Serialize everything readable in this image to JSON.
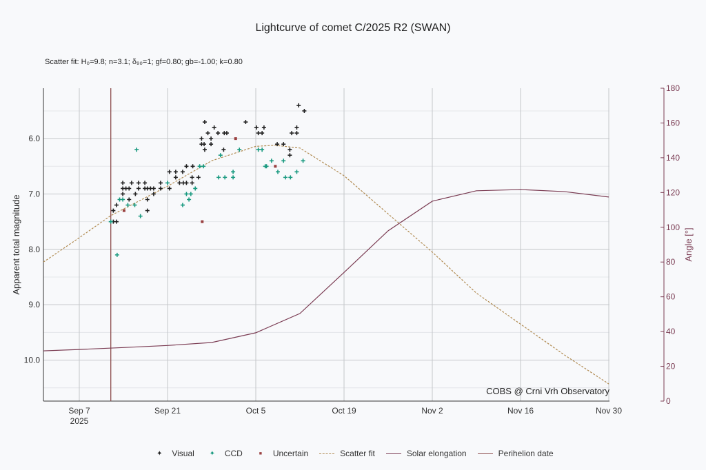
{
  "chart_data": {
    "type": "scatter",
    "title": "Lightcurve of comet C/2025 R2 (SWAN)",
    "subtitle": "Scatter fit: H₀=9.8; n=3.1; δ₉₀=1; gf=0.80; gb=-1.00; k=0.80",
    "xlabel": "",
    "ylabel": "Apparent total magnitude",
    "y2label": "Angle [°]",
    "x_units": "day number counted from Sep 1 2025 = 1 (Oct 1 = 31, Nov 1 = 62)",
    "xlim": [
      1.3,
      91
    ],
    "ylim": [
      10.74,
      5.09
    ],
    "y2lim": [
      0,
      180
    ],
    "x_ticks": [
      {
        "d": 7,
        "label": "Sep 7",
        "sub": "2025"
      },
      {
        "d": 21,
        "label": "Sep 21"
      },
      {
        "d": 35,
        "label": "Oct 5"
      },
      {
        "d": 49,
        "label": "Oct 19"
      },
      {
        "d": 63,
        "label": "Nov 2"
      },
      {
        "d": 77,
        "label": "Nov 16"
      },
      {
        "d": 91,
        "label": "Nov 30"
      }
    ],
    "y_ticks": [
      "6.0",
      "7.0",
      "8.0",
      "9.0",
      "10.0"
    ],
    "y2_ticks": [
      "0",
      "20",
      "40",
      "60",
      "80",
      "100",
      "120",
      "140",
      "160",
      "180"
    ],
    "watermark": "COBS @ Crni Vrh Observatory",
    "perihelion_day": 12,
    "legend": [
      {
        "label": "Visual",
        "glyph": "✦",
        "color": "#222222"
      },
      {
        "label": "CCD",
        "glyph": "✦",
        "color": "#1a9a80"
      },
      {
        "label": "Uncertain",
        "glyph": "■",
        "color": "#9a4040"
      },
      {
        "label": "Scatter fit",
        "style": "dashed",
        "color": "#b08a50"
      },
      {
        "label": "Solar elongation",
        "style": "line",
        "color": "#7a3b52"
      },
      {
        "label": "Perihelion date",
        "style": "line",
        "color": "#8b4a4a"
      }
    ],
    "series": [
      {
        "name": "Visual",
        "color": "#222222",
        "points": [
          [
            26.9,
            5.7
          ],
          [
            41.8,
            5.4
          ],
          [
            42.7,
            5.5
          ],
          [
            33.4,
            5.7
          ],
          [
            28.4,
            5.8
          ],
          [
            35.1,
            5.8
          ],
          [
            36.3,
            5.8
          ],
          [
            41.5,
            5.8
          ],
          [
            27.4,
            5.9
          ],
          [
            29.0,
            5.9
          ],
          [
            30.0,
            5.9
          ],
          [
            30.4,
            5.9
          ],
          [
            35.4,
            5.9
          ],
          [
            36.0,
            5.9
          ],
          [
            40.7,
            5.9
          ],
          [
            41.5,
            5.9
          ],
          [
            26.4,
            6.0
          ],
          [
            27.9,
            6.0
          ],
          [
            26.4,
            6.1
          ],
          [
            26.8,
            6.1
          ],
          [
            27.9,
            6.1
          ],
          [
            38.4,
            6.1
          ],
          [
            39.4,
            6.1
          ],
          [
            26.9,
            6.2
          ],
          [
            29.9,
            6.2
          ],
          [
            40.4,
            6.2
          ],
          [
            40.4,
            6.3
          ],
          [
            24.0,
            6.5
          ],
          [
            25.0,
            6.5
          ],
          [
            21.3,
            6.6
          ],
          [
            22.3,
            6.6
          ],
          [
            23.4,
            6.6
          ],
          [
            22.3,
            6.7
          ],
          [
            24.9,
            6.7
          ],
          [
            25.9,
            6.7
          ],
          [
            13.9,
            6.8
          ],
          [
            15.3,
            6.8
          ],
          [
            16.4,
            6.8
          ],
          [
            17.4,
            6.8
          ],
          [
            19.9,
            6.8
          ],
          [
            22.9,
            6.8
          ],
          [
            23.5,
            6.8
          ],
          [
            24.0,
            6.8
          ],
          [
            24.9,
            6.8
          ],
          [
            13.9,
            6.9
          ],
          [
            14.4,
            6.9
          ],
          [
            14.9,
            6.9
          ],
          [
            16.4,
            6.9
          ],
          [
            17.4,
            6.9
          ],
          [
            17.8,
            6.9
          ],
          [
            18.3,
            6.9
          ],
          [
            18.8,
            6.9
          ],
          [
            19.9,
            6.9
          ],
          [
            21.3,
            6.9
          ],
          [
            13.9,
            7.0
          ],
          [
            15.9,
            7.0
          ],
          [
            18.8,
            7.0
          ],
          [
            14.9,
            7.1
          ],
          [
            17.8,
            7.1
          ],
          [
            12.9,
            7.2
          ],
          [
            12.4,
            7.3
          ],
          [
            17.8,
            7.3
          ],
          [
            12.9,
            7.5
          ],
          [
            12.4,
            7.5
          ]
        ]
      },
      {
        "name": "CCD",
        "color": "#1a9a80",
        "points": [
          [
            16.1,
            6.2
          ],
          [
            29.4,
            6.3
          ],
          [
            32.4,
            6.2
          ],
          [
            35.4,
            6.2
          ],
          [
            36.0,
            6.2
          ],
          [
            26.1,
            6.5
          ],
          [
            26.7,
            6.5
          ],
          [
            31.4,
            6.6
          ],
          [
            29.1,
            6.7
          ],
          [
            30.1,
            6.7
          ],
          [
            31.4,
            6.7
          ],
          [
            21.0,
            6.8
          ],
          [
            25.4,
            6.9
          ],
          [
            24.0,
            7.0
          ],
          [
            24.7,
            7.0
          ],
          [
            24.4,
            7.1
          ],
          [
            23.4,
            7.2
          ],
          [
            13.4,
            7.1
          ],
          [
            13.9,
            7.1
          ],
          [
            14.7,
            7.2
          ],
          [
            15.8,
            7.2
          ],
          [
            16.7,
            7.4
          ],
          [
            12.0,
            7.5
          ],
          [
            13.0,
            8.1
          ],
          [
            36.5,
            6.5
          ],
          [
            36.7,
            6.5
          ],
          [
            37.5,
            6.4
          ],
          [
            39.4,
            6.4
          ],
          [
            42.5,
            6.4
          ],
          [
            38.5,
            6.6
          ],
          [
            39.7,
            6.7
          ],
          [
            40.5,
            6.7
          ],
          [
            41.5,
            6.6
          ]
        ]
      },
      {
        "name": "Uncertain",
        "color": "#9a4040",
        "points": [
          [
            14.1,
            7.3
          ],
          [
            31.8,
            6.0
          ],
          [
            26.5,
            7.5
          ],
          [
            38.1,
            6.5
          ]
        ]
      },
      {
        "name": "Scatter fit",
        "color": "#b08a50",
        "points": [
          [
            1.3,
            8.23
          ],
          [
            7,
            7.79
          ],
          [
            12,
            7.39
          ],
          [
            21,
            6.86
          ],
          [
            28,
            6.4
          ],
          [
            35,
            6.14
          ],
          [
            38,
            6.12
          ],
          [
            42,
            6.17
          ],
          [
            49,
            6.67
          ],
          [
            56,
            7.36
          ],
          [
            63,
            8.05
          ],
          [
            70,
            8.79
          ],
          [
            77,
            9.35
          ],
          [
            84,
            9.91
          ],
          [
            91,
            10.43
          ]
        ]
      },
      {
        "name": "Solar elongation",
        "axis": "right",
        "color": "#7a3b52",
        "points": [
          [
            1.3,
            28.9
          ],
          [
            7,
            29.7
          ],
          [
            14,
            30.8
          ],
          [
            21,
            32
          ],
          [
            28,
            33.7
          ],
          [
            35,
            39.3
          ],
          [
            42,
            50.4
          ],
          [
            49,
            74
          ],
          [
            56,
            98
          ],
          [
            63,
            115
          ],
          [
            70,
            121
          ],
          [
            77,
            121.7
          ],
          [
            84,
            120.5
          ],
          [
            91,
            117.4
          ]
        ]
      }
    ]
  }
}
